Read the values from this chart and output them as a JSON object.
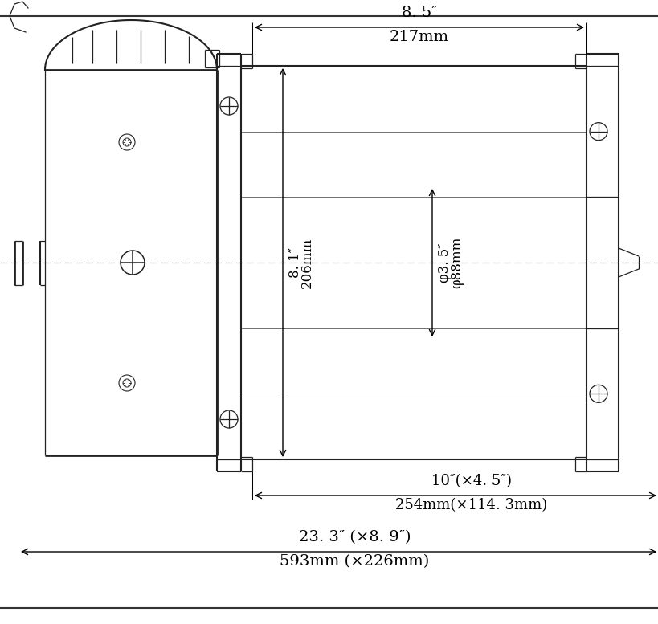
{
  "bg_color": "#ffffff",
  "line_color": "#222222",
  "dim_color": "#000000",
  "fig_width": 8.2,
  "fig_height": 7.77,
  "dpi": 100,
  "dim_labels": {
    "top_inch": "8. 5″",
    "top_mm": "217mm",
    "height_inch": "8. 1″",
    "height_mm": "206mm",
    "diam_inch": "φ3. 5″",
    "diam_mm": "φ88mm",
    "mid_inch": "10″(×4. 5″)",
    "mid_mm": "254mm(×114. 3mm)",
    "bot_inch": "23. 3″ (×8. 9″)",
    "bot_mm": "593mm (×226mm)"
  }
}
